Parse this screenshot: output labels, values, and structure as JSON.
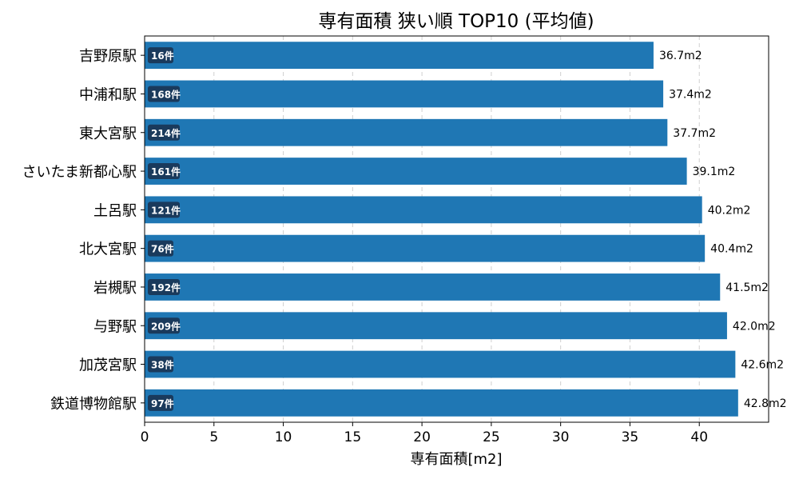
{
  "chart_data": {
    "type": "bar",
    "orientation": "horizontal",
    "title": "専有面積 狭い順 TOP10 (平均値)",
    "xlabel": "専有面積[m2]",
    "ylabel": "",
    "xlim": [
      0,
      45
    ],
    "xticks": [
      0,
      5,
      10,
      15,
      20,
      25,
      30,
      35,
      40
    ],
    "grid": "x-dashed",
    "bar_color": "#1f77b4",
    "count_badge_color": "#1a3a5c",
    "categories": [
      "吉野原駅",
      "中浦和駅",
      "東大宮駅",
      "さいたま新都心駅",
      "土呂駅",
      "北大宮駅",
      "岩槻駅",
      "与野駅",
      "加茂宮駅",
      "鉄道博物館駅"
    ],
    "values": [
      36.7,
      37.4,
      37.7,
      39.1,
      40.2,
      40.4,
      41.5,
      42.0,
      42.6,
      42.8
    ],
    "value_labels": [
      "36.7m2",
      "37.4m2",
      "37.7m2",
      "39.1m2",
      "40.2m2",
      "40.4m2",
      "41.5m2",
      "42.0m2",
      "42.6m2",
      "42.8m2"
    ],
    "count_labels": [
      "16件",
      "168件",
      "214件",
      "161件",
      "121件",
      "76件",
      "192件",
      "209件",
      "38件",
      "97件"
    ]
  }
}
